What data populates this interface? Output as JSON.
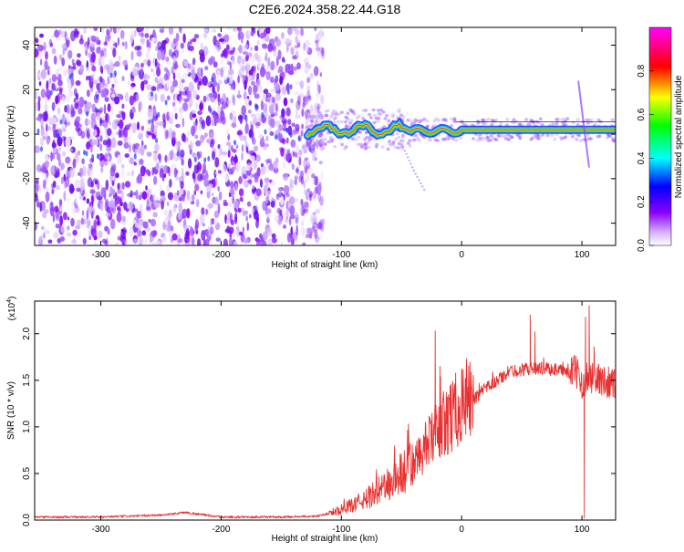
{
  "title": "C2E6.2024.358.22.44.G18",
  "chart_data": [
    {
      "type": "heatmap",
      "xlabel": "Height of straight line (km)",
      "ylabel": "Frequency (Hz)",
      "xlim": [
        -355,
        128
      ],
      "ylim": [
        -50,
        48
      ],
      "xticks": [
        -300,
        -200,
        -100,
        0,
        100
      ],
      "yticks": [
        -40,
        -20,
        0,
        20,
        40
      ],
      "grid": false,
      "colorbar": {
        "label": "Normalized spectral amplitude",
        "ticks": [
          "0.0",
          "0.2",
          "0.4",
          "0.6",
          "0.8"
        ],
        "range": [
          0,
          1
        ],
        "colors": [
          "#ffffff",
          "#8b00ff",
          "#0000ff",
          "#00ffff",
          "#00ff00",
          "#ffff00",
          "#ff0000",
          "#ff00ff"
        ]
      },
      "features": [
        {
          "name": "noise",
          "x_range": [
            -355,
            -125
          ],
          "freq_range": [
            -50,
            48
          ],
          "amplitude": "low"
        },
        {
          "name": "signal band",
          "x_range": [
            -130,
            128
          ],
          "freq_center": 2,
          "amplitude": "high"
        },
        {
          "name": "descending feature",
          "x_range": [
            -55,
            -30
          ],
          "freq_range": [
            -26,
            2
          ]
        }
      ]
    },
    {
      "type": "line",
      "xlabel": "Height of straight line (km)",
      "ylabel": "SNR (10 * v/v)",
      "scale_label": "(x10",
      "scale_exp": "4",
      "scale_close": ")",
      "xlim": [
        -355,
        128
      ],
      "ylim": [
        0,
        2.35
      ],
      "xticks": [
        -300,
        -200,
        -100,
        0,
        100
      ],
      "yticks": [
        "0.0",
        "0.5",
        "1.0",
        "1.5",
        "2.0"
      ],
      "grid": false,
      "series_color": "#e83030",
      "x": [
        -355,
        -300,
        -250,
        -230,
        -200,
        -150,
        -120,
        -100,
        -80,
        -60,
        -40,
        -20,
        0,
        20,
        40,
        60,
        80,
        95,
        100,
        105,
        110,
        128
      ],
      "values": [
        0.03,
        0.03,
        0.05,
        0.08,
        0.03,
        0.03,
        0.04,
        0.1,
        0.2,
        0.35,
        0.55,
        0.9,
        1.15,
        1.4,
        1.58,
        1.62,
        1.6,
        1.55,
        1.45,
        1.5,
        1.48,
        1.44
      ],
      "spikes": [
        {
          "x": -22,
          "y": 2.03
        },
        {
          "x": -18,
          "y": 1.65
        },
        {
          "x": 0,
          "y": 1.62
        },
        {
          "x": 57,
          "y": 2.2
        },
        {
          "x": 61,
          "y": 2.02
        },
        {
          "x": 103,
          "y": 2.18
        },
        {
          "x": 106,
          "y": 2.3
        },
        {
          "x": 102,
          "y": 0.02
        }
      ]
    }
  ]
}
